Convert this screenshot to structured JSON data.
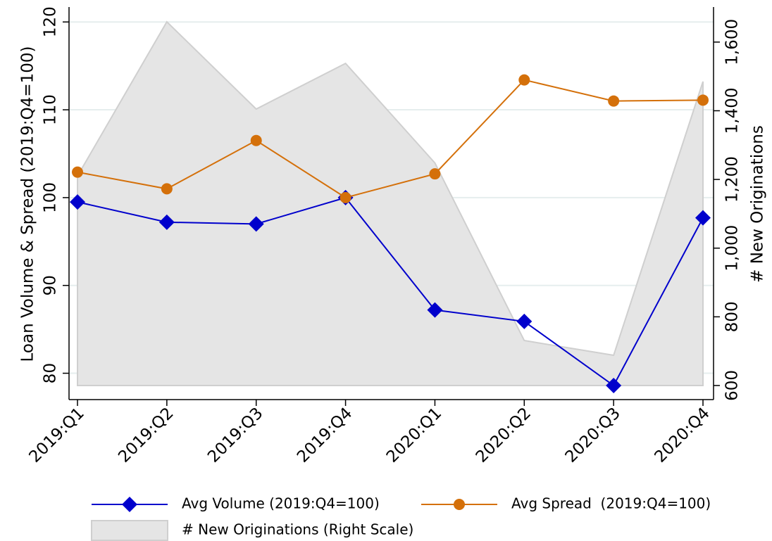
{
  "chart_data": {
    "type": "line",
    "ylabel": "Loan Volume & Spread (2019:Q4=100)",
    "y2label": "# New Originations",
    "categories": [
      "2019:Q1",
      "2019:Q2",
      "2019:Q3",
      "2019:Q4",
      "2020:Q1",
      "2020:Q2",
      "2020:Q3",
      "2020:Q4"
    ],
    "series": [
      {
        "name": "# New Originations (Right Scale)",
        "kind": "area",
        "axis": "y2",
        "color": "#e5e5e5",
        "values": [
          1210,
          1659,
          1405,
          1538,
          1248,
          731,
          688,
          1485
        ]
      },
      {
        "name": "Avg Volume (2019:Q4=100)",
        "kind": "line",
        "marker": "diamond",
        "color": "#0000cc",
        "values": [
          99.5,
          97.2,
          97.0,
          100,
          87.2,
          85.9,
          78.6,
          97.7
        ]
      },
      {
        "name": "Avg Spread  (2019:Q4=100)",
        "kind": "line",
        "marker": "circle",
        "color": "#d4700a",
        "values": [
          102.9,
          101.0,
          106.5,
          100,
          102.7,
          113.4,
          111.0,
          111.1
        ]
      }
    ],
    "legend_order": [
      1,
      2,
      0
    ],
    "ylim": [
      77,
      121.7
    ],
    "yticks": [
      80,
      90,
      100,
      110,
      120
    ],
    "y2lim": [
      559,
      1702
    ],
    "y2ticks": [
      600,
      800,
      {
        "value": 1000,
        "label": "1,000"
      },
      {
        "value": 1200,
        "label": "1,200"
      },
      {
        "value": 1400,
        "label": "1,400"
      },
      {
        "value": 1600,
        "label": "1,600"
      }
    ],
    "grid": true
  }
}
